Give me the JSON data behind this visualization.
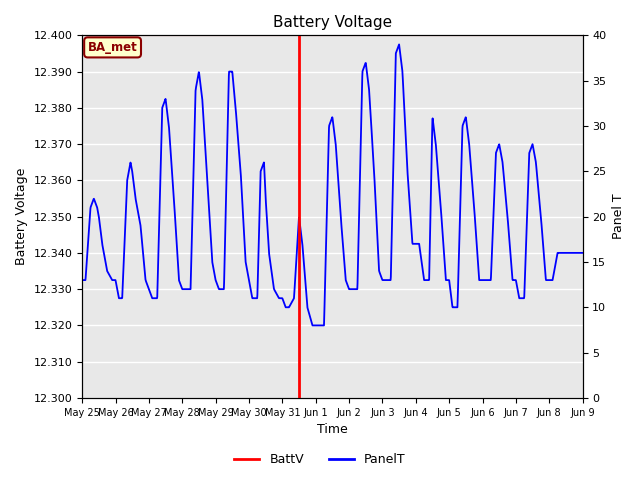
{
  "title": "Battery Voltage",
  "xlabel": "Time",
  "ylabel_left": "Battery Voltage",
  "ylabel_right": "Panel T",
  "ylim_left": [
    12.3,
    12.4
  ],
  "ylim_right": [
    0,
    40
  ],
  "yticks_left": [
    12.3,
    12.31,
    12.32,
    12.33,
    12.34,
    12.35,
    12.36,
    12.37,
    12.38,
    12.39,
    12.4
  ],
  "yticks_right": [
    0,
    5,
    10,
    15,
    20,
    25,
    30,
    35,
    40
  ],
  "bg_color": "#e8e8e8",
  "grid_color": "#ffffff",
  "battv_color": "red",
  "panelt_color": "blue",
  "vline_x": 6.5,
  "annotation_label": "BA_met",
  "x_tick_labels": [
    "May 25",
    "May 26",
    "May 27",
    "May 28",
    "May 29",
    "May 30",
    "May 31",
    "Jun 1",
    "Jun 2",
    "Jun 3",
    "Jun 4",
    "Jun 5",
    "Jun 6",
    "Jun 7",
    "Jun 8",
    "Jun 9"
  ],
  "x_tick_values": [
    0,
    1,
    2,
    3,
    4,
    5,
    6,
    7,
    8,
    9,
    10,
    11,
    12,
    13,
    14,
    15
  ],
  "xlim": [
    0,
    15
  ]
}
